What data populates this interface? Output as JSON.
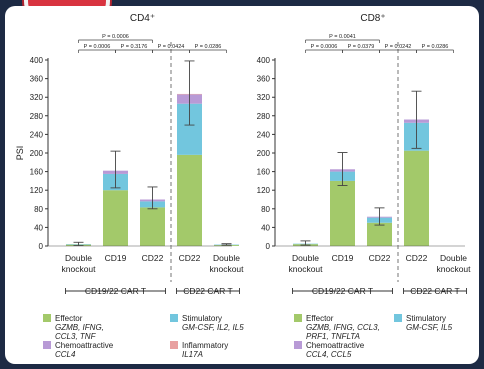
{
  "chart_data": [
    {
      "type": "bar",
      "stacked": true,
      "title": "CD4⁺",
      "ylabel": "PSI",
      "ylim": [
        0,
        400
      ],
      "yticks": [
        0,
        40,
        80,
        120,
        160,
        200,
        240,
        280,
        320,
        360,
        400
      ],
      "categories": [
        "Double\nknockout",
        "CD19",
        "CD22",
        "CD22",
        "Double\nknockout"
      ],
      "groups": [
        {
          "label": "CD19/22 CAR T",
          "span": [
            0,
            2
          ]
        },
        {
          "label": "CD22 CAR T",
          "span": [
            3,
            4
          ]
        }
      ],
      "series": [
        {
          "name": "Effector",
          "values": [
            3,
            120,
            83,
            196,
            2
          ]
        },
        {
          "name": "Stimulatory",
          "values": [
            1,
            35,
            13,
            110,
            1
          ]
        },
        {
          "name": "Chemoattractive",
          "values": [
            0,
            7,
            4,
            20,
            0
          ]
        },
        {
          "name": "Inflammatory",
          "values": [
            0,
            0,
            0,
            1,
            0
          ]
        }
      ],
      "error_bars": [
        {
          "center": 4,
          "low": 1,
          "high": 8
        },
        {
          "center": 162,
          "low": 125,
          "high": 204
        },
        {
          "center": 100,
          "low": 80,
          "high": 127
        },
        {
          "center": 327,
          "low": 260,
          "high": 398
        },
        {
          "center": 3,
          "low": 2,
          "high": 5
        }
      ],
      "pvalues": [
        {
          "from": 0,
          "to": 1,
          "level": 1,
          "text": "P = 0.0006"
        },
        {
          "from": 1,
          "to": 2,
          "level": 1,
          "text": "P = 0.3176"
        },
        {
          "from": 2,
          "to": 3,
          "level": 1,
          "text": "P = 0.0424"
        },
        {
          "from": 3,
          "to": 4,
          "level": 1,
          "text": "P = 0.0286"
        },
        {
          "from": 0,
          "to": 2,
          "level": 2,
          "text": "P = 0.0006"
        }
      ],
      "divider_after": 2
    },
    {
      "type": "bar",
      "stacked": true,
      "title": "CD8⁺",
      "ylabel": "",
      "ylim": [
        0,
        400
      ],
      "yticks": [
        0,
        40,
        80,
        120,
        160,
        200,
        240,
        280,
        320,
        360,
        400
      ],
      "categories": [
        "Double\nknockout",
        "CD19",
        "CD22",
        "CD22",
        "Double\nknockout"
      ],
      "groups": [
        {
          "label": "CD19/22 CAR T",
          "span": [
            0,
            2
          ]
        },
        {
          "label": "CD22 CAR T",
          "span": [
            3,
            4
          ]
        }
      ],
      "series": [
        {
          "name": "Effector",
          "values": [
            4,
            140,
            50,
            205,
            0
          ]
        },
        {
          "name": "Stimulatory",
          "values": [
            1,
            20,
            11,
            60,
            0
          ]
        },
        {
          "name": "Chemoattractive",
          "values": [
            0,
            5,
            2,
            7,
            0
          ]
        },
        {
          "name": "Inflammatory",
          "values": [
            0,
            0,
            0,
            0,
            0
          ]
        }
      ],
      "error_bars": [
        {
          "center": 5,
          "low": 2,
          "high": 11
        },
        {
          "center": 165,
          "low": 130,
          "high": 201
        },
        {
          "center": 63,
          "low": 45,
          "high": 82
        },
        {
          "center": 272,
          "low": 210,
          "high": 333
        },
        {
          "center": 0,
          "low": 0,
          "high": 0
        }
      ],
      "pvalues": [
        {
          "from": 0,
          "to": 1,
          "level": 1,
          "text": "P = 0.0006"
        },
        {
          "from": 1,
          "to": 2,
          "level": 1,
          "text": "P = 0.0379"
        },
        {
          "from": 2,
          "to": 3,
          "level": 1,
          "text": "P = 0.0242"
        },
        {
          "from": 3,
          "to": 4,
          "level": 1,
          "text": "P = 0.0286"
        },
        {
          "from": 0,
          "to": 2,
          "level": 2,
          "text": "P = 0.0041"
        }
      ],
      "divider_after": 2
    }
  ],
  "colors": {
    "Effector": "#a3c96a",
    "Stimulatory": "#72c6de",
    "Chemoattractive": "#b89ad6",
    "Inflammatory": "#e8a0a0"
  },
  "legends": [
    {
      "items": [
        {
          "name": "Effector",
          "genes": "GZMB, IFNG,\nCCL3, TNF"
        },
        {
          "name": "Stimulatory",
          "genes": "GM-CSF, IL2, IL5"
        },
        {
          "name": "Chemoattractive",
          "genes": "CCL4"
        },
        {
          "name": "Inflammatory",
          "genes": "IL17A"
        }
      ]
    },
    {
      "items": [
        {
          "name": "Effector",
          "genes": "GZMB, IFNG, CCL3,\nPRF1, TNFLTA"
        },
        {
          "name": "Stimulatory",
          "genes": "GM-CSF, IL5"
        },
        {
          "name": "Chemoattractive",
          "genes": "CCL4, CCL5"
        }
      ]
    }
  ]
}
